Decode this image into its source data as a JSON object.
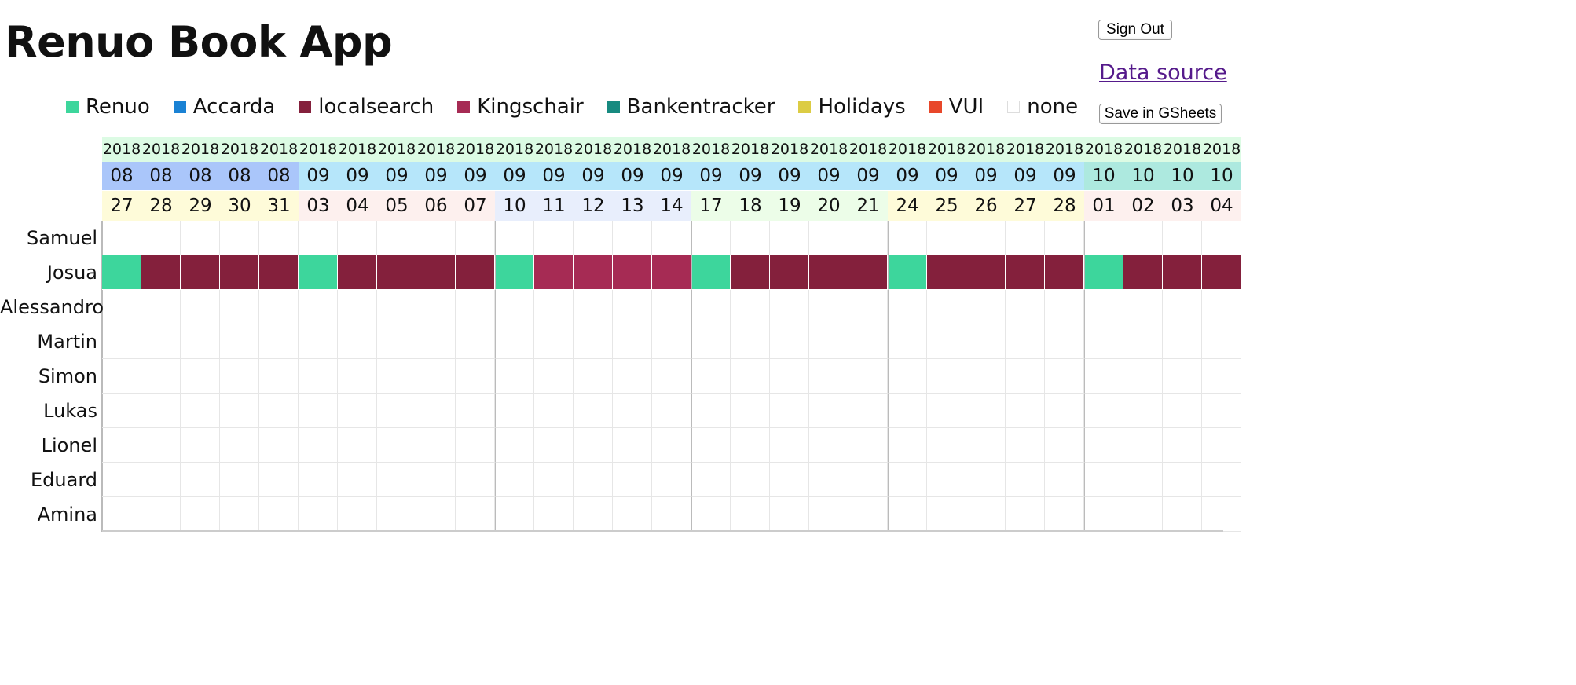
{
  "app": {
    "title": "Renuo Book App",
    "sign_out_label": "Sign Out",
    "data_source_label": "Data source",
    "save_label": "Save in GSheets"
  },
  "legend": [
    {
      "label": "Renuo",
      "color": "#3dd69c"
    },
    {
      "label": "Accarda",
      "color": "#1a82d4"
    },
    {
      "label": "localsearch",
      "color": "#84203c"
    },
    {
      "label": "Kingschair",
      "color": "#a62b54"
    },
    {
      "label": "Bankentracker",
      "color": "#178a80"
    },
    {
      "label": "Holidays",
      "color": "#dccc44"
    },
    {
      "label": "VUI",
      "color": "#e8472a"
    },
    {
      "label": "none",
      "color": "#ffffff"
    }
  ],
  "calendar": {
    "days": [
      {
        "year": "2018",
        "month": "08",
        "day": "27"
      },
      {
        "year": "2018",
        "month": "08",
        "day": "28"
      },
      {
        "year": "2018",
        "month": "08",
        "day": "29"
      },
      {
        "year": "2018",
        "month": "08",
        "day": "30"
      },
      {
        "year": "2018",
        "month": "08",
        "day": "31"
      },
      {
        "year": "2018",
        "month": "09",
        "day": "03"
      },
      {
        "year": "2018",
        "month": "09",
        "day": "04"
      },
      {
        "year": "2018",
        "month": "09",
        "day": "05"
      },
      {
        "year": "2018",
        "month": "09",
        "day": "06"
      },
      {
        "year": "2018",
        "month": "09",
        "day": "07"
      },
      {
        "year": "2018",
        "month": "09",
        "day": "10"
      },
      {
        "year": "2018",
        "month": "09",
        "day": "11"
      },
      {
        "year": "2018",
        "month": "09",
        "day": "12"
      },
      {
        "year": "2018",
        "month": "09",
        "day": "13"
      },
      {
        "year": "2018",
        "month": "09",
        "day": "14"
      },
      {
        "year": "2018",
        "month": "09",
        "day": "17"
      },
      {
        "year": "2018",
        "month": "09",
        "day": "18"
      },
      {
        "year": "2018",
        "month": "09",
        "day": "19"
      },
      {
        "year": "2018",
        "month": "09",
        "day": "20"
      },
      {
        "year": "2018",
        "month": "09",
        "day": "21"
      },
      {
        "year": "2018",
        "month": "09",
        "day": "24"
      },
      {
        "year": "2018",
        "month": "09",
        "day": "25"
      },
      {
        "year": "2018",
        "month": "09",
        "day": "26"
      },
      {
        "year": "2018",
        "month": "09",
        "day": "27"
      },
      {
        "year": "2018",
        "month": "09",
        "day": "28"
      },
      {
        "year": "2018",
        "month": "10",
        "day": "01"
      },
      {
        "year": "2018",
        "month": "10",
        "day": "02"
      },
      {
        "year": "2018",
        "month": "10",
        "day": "03"
      },
      {
        "year": "2018",
        "month": "10",
        "day": "04"
      }
    ],
    "header_colors": {
      "year": "#dcfbe4",
      "months": {
        "08": "#aac6fa",
        "09": "#b6e6fa",
        "10": "#ade9df"
      },
      "weeks": [
        "#fefbd9",
        "#fdf0ee",
        "#e8eefc",
        "#ecfde8",
        "#fefbd9",
        "#fdf0ee"
      ]
    },
    "people": [
      {
        "name": "Samuel",
        "bookings": []
      },
      {
        "name": "Josua",
        "bookings": [
          "Renuo",
          "localsearch",
          "localsearch",
          "localsearch",
          "localsearch",
          "Renuo",
          "localsearch",
          "localsearch",
          "localsearch",
          "localsearch",
          "Renuo",
          "Kingschair",
          "Kingschair",
          "Kingschair",
          "Kingschair",
          "Renuo",
          "localsearch",
          "localsearch",
          "localsearch",
          "localsearch",
          "Renuo",
          "localsearch",
          "localsearch",
          "localsearch",
          "localsearch",
          "Renuo",
          "localsearch",
          "localsearch",
          "localsearch"
        ]
      },
      {
        "name": "Alessandro",
        "bookings": []
      },
      {
        "name": "Martin",
        "bookings": []
      },
      {
        "name": "Simon",
        "bookings": []
      },
      {
        "name": "Lukas",
        "bookings": []
      },
      {
        "name": "Lionel",
        "bookings": []
      },
      {
        "name": "Eduard",
        "bookings": []
      },
      {
        "name": "Amina",
        "bookings": []
      }
    ]
  }
}
